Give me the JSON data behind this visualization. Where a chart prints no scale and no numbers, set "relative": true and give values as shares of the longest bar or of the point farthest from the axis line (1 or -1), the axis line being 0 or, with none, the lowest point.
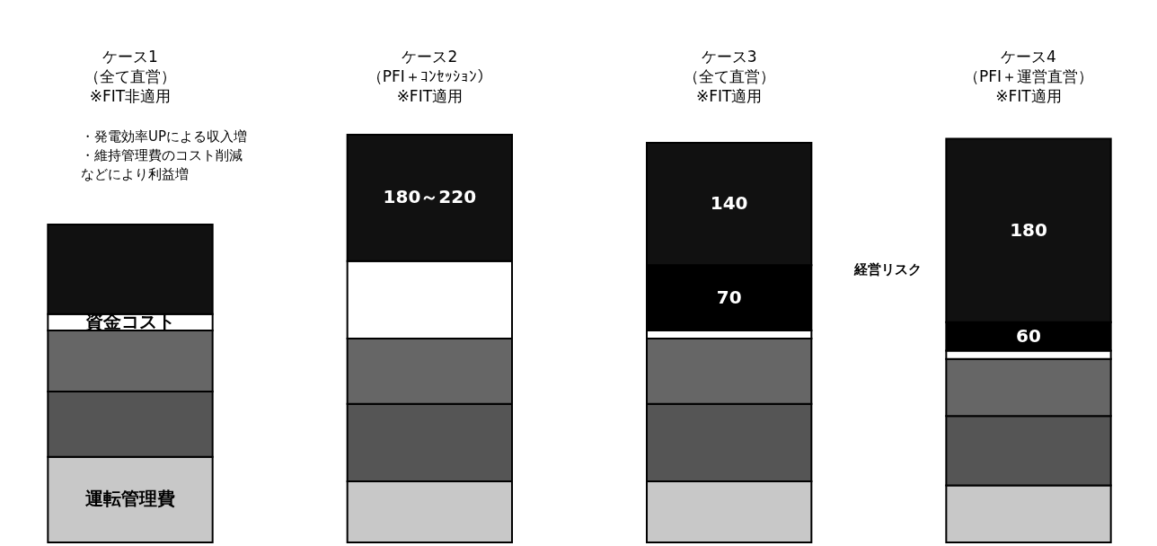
{
  "chart_data": {
    "type": "bar",
    "stacked": true,
    "relative": true,
    "categories": [
      "ケース1\n（全て直営）\n※FIT非適用",
      "ケース2\n（PFI＋ｺﾝｾｯｼｮﾝ）\n※FIT適用",
      "ケース3\n（全て直営）\n※FIT適用",
      "ケース4\n（PFI＋運営直営）\n※FIT適用"
    ],
    "series": [
      {
        "name": "運転管理費",
        "color": "#c8c8c8",
        "values": [
          0.21,
          0.15,
          0.15,
          0.14
        ]
      },
      {
        "color": "#555555",
        "values": [
          0.16,
          0.19,
          0.19,
          0.17
        ]
      },
      {
        "color": "#666666",
        "values": [
          0.15,
          0.16,
          0.16,
          0.14
        ]
      },
      {
        "name": "資金コスト",
        "color": "#ffffff",
        "values": [
          0.04,
          0.19,
          0.02,
          0.02
        ]
      },
      {
        "color": "#000000",
        "values": [
          null,
          null,
          0.16,
          0.07
        ]
      },
      {
        "color": "#111111",
        "values": [
          0.22,
          0.31,
          0.3,
          0.45
        ]
      }
    ],
    "annotations": [
      "・発電効率UPによる収入増",
      "・維持管理費のコスト削減",
      "などにより利益増",
      "経営リスク",
      "180～220",
      "140",
      "70",
      "180",
      "60"
    ],
    "grid": false
  }
}
